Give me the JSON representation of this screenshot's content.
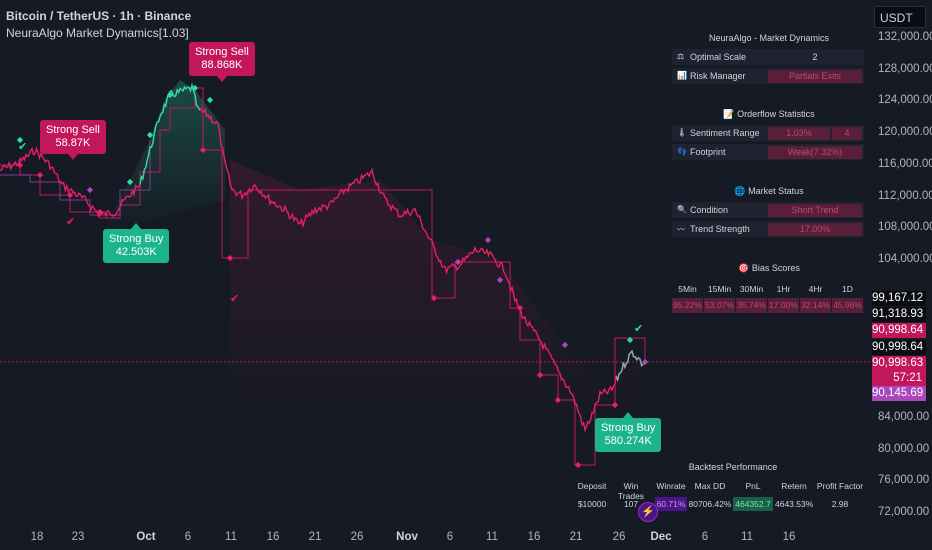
{
  "header": {
    "symbol_line": "Bitcoin / TetherUS · 1h · Binance",
    "indicator_line": "NeuraAlgo Market Dynamics[1.03]"
  },
  "currency_button": "USDT",
  "y_axis_labels": [
    "132,000.00",
    "128,000.00",
    "124,000.00",
    "120,000.00",
    "116,000.00",
    "112,000.00",
    "108,000.00",
    "104,000.00",
    "84,000.00",
    "80,000.00",
    "76,000.00",
    "72,000.00"
  ],
  "price_tags": [
    {
      "text": "99,167.12",
      "bg": "#0b0d12"
    },
    {
      "text": "91,318.93",
      "bg": "#0b0d12"
    },
    {
      "text": "90,998.64",
      "bg": "#c2185b"
    },
    {
      "text": "90,998.64",
      "bg": "#0b0d12"
    },
    {
      "text": "90,998.63",
      "bg": "#c2185b"
    },
    {
      "text": "57:21",
      "bg": "#c2185b"
    },
    {
      "text": "90,145.69",
      "bg": "#ab47bc"
    }
  ],
  "x_axis_labels": [
    {
      "text": "18",
      "bold": false
    },
    {
      "text": "23",
      "bold": false
    },
    {
      "text": "Oct",
      "bold": true
    },
    {
      "text": "6",
      "bold": false
    },
    {
      "text": "11",
      "bold": false
    },
    {
      "text": "16",
      "bold": false
    },
    {
      "text": "21",
      "bold": false
    },
    {
      "text": "26",
      "bold": false
    },
    {
      "text": "Nov",
      "bold": true
    },
    {
      "text": "6",
      "bold": false
    },
    {
      "text": "11",
      "bold": false
    },
    {
      "text": "16",
      "bold": false
    },
    {
      "text": "21",
      "bold": false
    },
    {
      "text": "26",
      "bold": false
    },
    {
      "text": "Dec",
      "bold": true
    },
    {
      "text": "6",
      "bold": false
    },
    {
      "text": "11",
      "bold": false
    },
    {
      "text": "16",
      "bold": false
    }
  ],
  "signals": [
    {
      "title": "Strong Sell",
      "value": "58.87K",
      "type": "sell"
    },
    {
      "title": "Strong Sell",
      "value": "88.868K",
      "type": "sell"
    },
    {
      "title": "Strong Buy",
      "value": "42.503K",
      "type": "buy"
    },
    {
      "title": "Strong Buy",
      "value": "580.274K",
      "type": "buy"
    }
  ],
  "panel": {
    "market_dynamics_title": "NeuraAlgo - Market Dynamics",
    "optimal_scale_label": "Optimal Scale",
    "optimal_scale_value": "2",
    "risk_manager_label": "Risk Manager",
    "risk_manager_value": "Partials Exits",
    "orderflow_title": "Orderflow Statistics",
    "sentiment_range_label": "Sentiment Range",
    "sentiment_range_value": "1.03%",
    "sentiment_range_value2": "4",
    "footprint_label": "Footprint",
    "footprint_value": "Weak(7.32%)",
    "market_status_title": "Market Status",
    "condition_label": "Condition",
    "condition_value": "Short Trend",
    "trend_strength_label": "Trend Strength",
    "trend_strength_value": "17.00%",
    "bias_title": "Bias Scores",
    "bias_headers": [
      "5Min",
      "15Min",
      "30Min",
      "1Hr",
      "4Hr",
      "1D"
    ],
    "bias_values": [
      "95.22%",
      "53.07%",
      "35.74%",
      "17.00%",
      "32.14%",
      "45.96%"
    ],
    "backtest_title": "Backtest Performance",
    "backtest_headers": [
      "Deposit",
      "Win Trades",
      "Winrate",
      "Max DD",
      "PnL",
      "Retern",
      "Profit Factor"
    ],
    "backtest_values": [
      "$10000",
      "107",
      "60.71%",
      "80706.42%",
      "464352.7",
      "4643.53%",
      "2.98"
    ]
  },
  "colors": {
    "background": "#161a25",
    "bear": "#e91e63",
    "bull": "#26e0a4",
    "step_line": "#c2185b",
    "purple": "#ab47bc"
  },
  "icons": {
    "optimal_scale": "scale-icon",
    "risk_manager": "chart-icon",
    "orderflow": "memo-icon",
    "sentiment": "thermometer-icon",
    "footprint": "footprint-icon",
    "market_status": "globe-icon",
    "condition": "magnifier-icon",
    "trend_strength": "wave-icon",
    "bias": "dart-icon",
    "logo": "bolt-icon"
  }
}
